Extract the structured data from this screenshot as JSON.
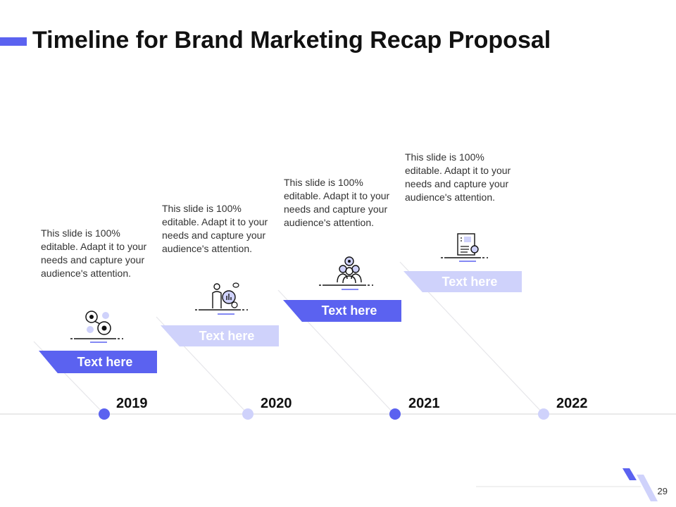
{
  "slide": {
    "title": "Timeline for Brand Marketing Recap Proposal",
    "page_number": "29",
    "colors": {
      "accent": "#5b62f0",
      "accent_light": "#cfd2fb",
      "line": "#e3e3e3"
    }
  },
  "milestones": [
    {
      "year": "2019",
      "label": "Text here",
      "description": "This slide is 100% editable. Adapt it to your needs and capture your audience's attention.",
      "icon": "gears-icon",
      "style": "dark"
    },
    {
      "year": "2020",
      "label": "Text here",
      "description": "This slide is 100% editable. Adapt it to your needs and capture your audience's attention.",
      "icon": "presenter-chart-icon",
      "style": "light"
    },
    {
      "year": "2021",
      "label": "Text here",
      "description": "This slide is 100% editable. Adapt it to your needs and capture your audience's attention.",
      "icon": "team-target-icon",
      "style": "dark"
    },
    {
      "year": "2022",
      "label": "Text here",
      "description": "This slide is 100% editable. Adapt it to your needs and capture your audience's attention.",
      "icon": "report-document-icon",
      "style": "light"
    }
  ]
}
